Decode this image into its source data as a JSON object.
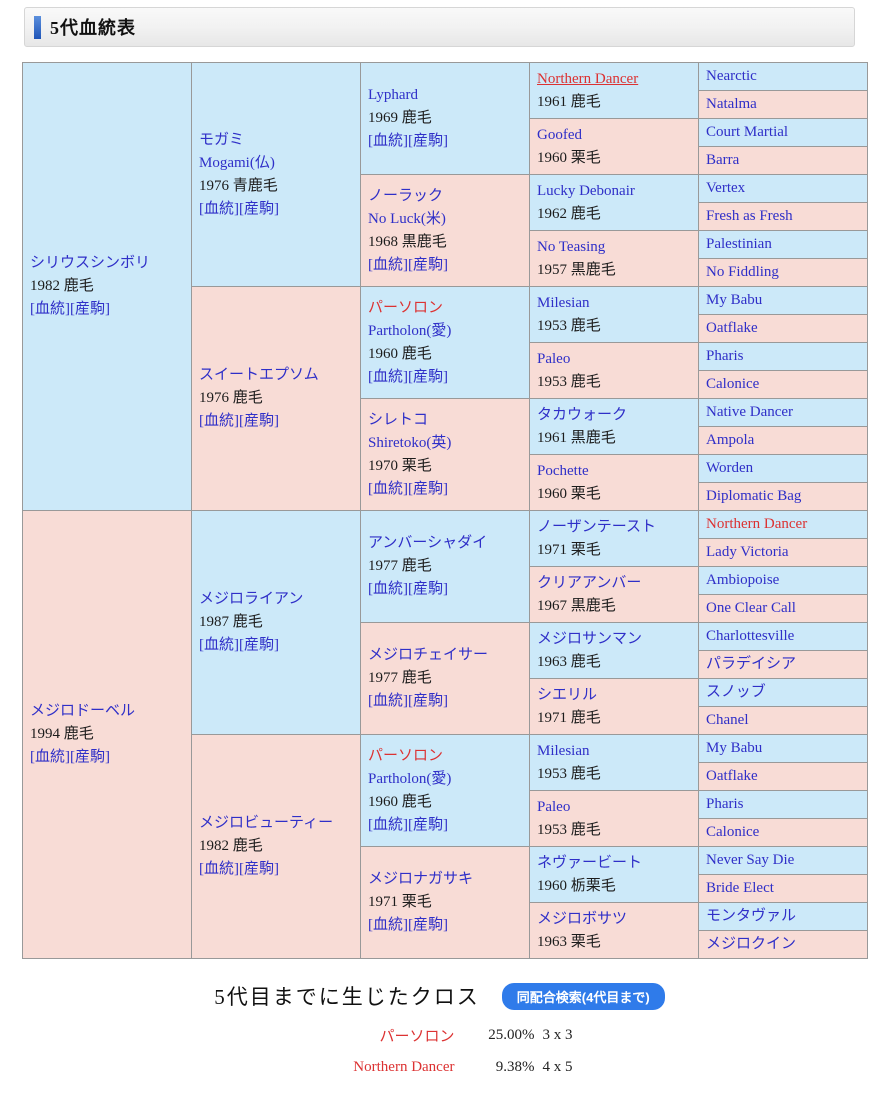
{
  "header": {
    "title": "5代血統表"
  },
  "colors": {
    "male_bg": "#cce9f9",
    "female_bg": "#f8dcd6",
    "link": "#2f2fc8",
    "red": "#dc3232",
    "accent_top": "#5b8fdd",
    "accent_bottom": "#1f55b8",
    "button": "#2f7bea"
  },
  "pedigree": {
    "sublinks": [
      "血統",
      "産駒"
    ],
    "roots": [
      {
        "n": "シリウスシンボリ",
        "info": "1982 鹿毛",
        "links": true,
        "sex": "m",
        "c": [
          {
            "n": "モガミ",
            "n2": "Mogami(仏)",
            "info": "1976 青鹿毛",
            "links": true,
            "sex": "m",
            "c": [
              {
                "n": "Lyphard",
                "info": "1969 鹿毛",
                "links": true,
                "sex": "m",
                "c": [
                  {
                    "n": "Northern Dancer",
                    "info": "1961 鹿毛",
                    "sex": "m",
                    "red": true,
                    "ul": true,
                    "c": [
                      {
                        "n": "Nearctic",
                        "sex": "m"
                      },
                      {
                        "n": "Natalma",
                        "sex": "f"
                      }
                    ]
                  },
                  {
                    "n": "Goofed",
                    "info": "1960 栗毛",
                    "sex": "f",
                    "c": [
                      {
                        "n": "Court Martial",
                        "sex": "m"
                      },
                      {
                        "n": "Barra",
                        "sex": "f"
                      }
                    ]
                  }
                ]
              },
              {
                "n": "ノーラック",
                "n2": "No Luck(米)",
                "info": "1968 黒鹿毛",
                "links": true,
                "sex": "f",
                "c": [
                  {
                    "n": "Lucky Debonair",
                    "info": "1962 鹿毛",
                    "sex": "m",
                    "c": [
                      {
                        "n": "Vertex",
                        "sex": "m"
                      },
                      {
                        "n": "Fresh as Fresh",
                        "sex": "f"
                      }
                    ]
                  },
                  {
                    "n": "No Teasing",
                    "info": "1957 黒鹿毛",
                    "sex": "f",
                    "c": [
                      {
                        "n": "Palestinian",
                        "sex": "m"
                      },
                      {
                        "n": "No Fiddling",
                        "sex": "f"
                      }
                    ]
                  }
                ]
              }
            ]
          },
          {
            "n": "スイートエプソム",
            "info": "1976 鹿毛",
            "links": true,
            "sex": "f",
            "c": [
              {
                "n": "パーソロン",
                "n2": "Partholon(愛)",
                "info": "1960 鹿毛",
                "links": true,
                "sex": "m",
                "red": true,
                "c": [
                  {
                    "n": "Milesian",
                    "info": "1953 鹿毛",
                    "sex": "m",
                    "c": [
                      {
                        "n": "My Babu",
                        "sex": "m"
                      },
                      {
                        "n": "Oatflake",
                        "sex": "f"
                      }
                    ]
                  },
                  {
                    "n": "Paleo",
                    "info": "1953 鹿毛",
                    "sex": "f",
                    "c": [
                      {
                        "n": "Pharis",
                        "sex": "m"
                      },
                      {
                        "n": "Calonice",
                        "sex": "f"
                      }
                    ]
                  }
                ]
              },
              {
                "n": "シレトコ",
                "n2": "Shiretoko(英)",
                "info": "1970 栗毛",
                "links": true,
                "sex": "f",
                "c": [
                  {
                    "n": "タカウォーク",
                    "info": "1961 黒鹿毛",
                    "sex": "m",
                    "c": [
                      {
                        "n": "Native Dancer",
                        "sex": "m"
                      },
                      {
                        "n": "Ampola",
                        "sex": "f"
                      }
                    ]
                  },
                  {
                    "n": "Pochette",
                    "info": "1960 栗毛",
                    "sex": "f",
                    "c": [
                      {
                        "n": "Worden",
                        "sex": "m"
                      },
                      {
                        "n": "Diplomatic Bag",
                        "sex": "f"
                      }
                    ]
                  }
                ]
              }
            ]
          }
        ]
      },
      {
        "n": "メジロドーベル",
        "info": "1994 鹿毛",
        "links": true,
        "sex": "f",
        "c": [
          {
            "n": "メジロライアン",
            "info": "1987 鹿毛",
            "links": true,
            "sex": "m",
            "c": [
              {
                "n": "アンバーシャダイ",
                "info": "1977 鹿毛",
                "links": true,
                "sex": "m",
                "c": [
                  {
                    "n": "ノーザンテースト",
                    "info": "1971 栗毛",
                    "sex": "m",
                    "c": [
                      {
                        "n": "Northern Dancer",
                        "sex": "m",
                        "red": true
                      },
                      {
                        "n": "Lady Victoria",
                        "sex": "f"
                      }
                    ]
                  },
                  {
                    "n": "クリアアンバー",
                    "info": "1967 黒鹿毛",
                    "sex": "f",
                    "c": [
                      {
                        "n": "Ambiopoise",
                        "sex": "m"
                      },
                      {
                        "n": "One Clear Call",
                        "sex": "f"
                      }
                    ]
                  }
                ]
              },
              {
                "n": "メジロチェイサー",
                "info": "1977 鹿毛",
                "links": true,
                "sex": "f",
                "c": [
                  {
                    "n": "メジロサンマン",
                    "info": "1963 鹿毛",
                    "sex": "m",
                    "c": [
                      {
                        "n": "Charlottesville",
                        "sex": "m"
                      },
                      {
                        "n": "パラデイシア",
                        "sex": "f"
                      }
                    ]
                  },
                  {
                    "n": "シエリル",
                    "info": "1971 鹿毛",
                    "sex": "f",
                    "c": [
                      {
                        "n": "スノッブ",
                        "sex": "m"
                      },
                      {
                        "n": "Chanel",
                        "sex": "f"
                      }
                    ]
                  }
                ]
              }
            ]
          },
          {
            "n": "メジロビューティー",
            "info": "1982 鹿毛",
            "links": true,
            "sex": "f",
            "c": [
              {
                "n": "パーソロン",
                "n2": "Partholon(愛)",
                "info": "1960 鹿毛",
                "links": true,
                "sex": "m",
                "red": true,
                "c": [
                  {
                    "n": "Milesian",
                    "info": "1953 鹿毛",
                    "sex": "m",
                    "c": [
                      {
                        "n": "My Babu",
                        "sex": "m"
                      },
                      {
                        "n": "Oatflake",
                        "sex": "f"
                      }
                    ]
                  },
                  {
                    "n": "Paleo",
                    "info": "1953 鹿毛",
                    "sex": "f",
                    "c": [
                      {
                        "n": "Pharis",
                        "sex": "m"
                      },
                      {
                        "n": "Calonice",
                        "sex": "f"
                      }
                    ]
                  }
                ]
              },
              {
                "n": "メジロナガサキ",
                "info": "1971 栗毛",
                "links": true,
                "sex": "f",
                "c": [
                  {
                    "n": "ネヴァービート",
                    "info": "1960 栃栗毛",
                    "sex": "m",
                    "c": [
                      {
                        "n": "Never Say Die",
                        "sex": "m"
                      },
                      {
                        "n": "Bride Elect",
                        "sex": "f"
                      }
                    ]
                  },
                  {
                    "n": "メジロボサツ",
                    "info": "1963 栗毛",
                    "sex": "f",
                    "c": [
                      {
                        "n": "モンタヴァル",
                        "sex": "m"
                      },
                      {
                        "n": "メジロクイン",
                        "sex": "f"
                      }
                    ]
                  }
                ]
              }
            ]
          }
        ]
      }
    ]
  },
  "cross_section": {
    "heading": "5代目までに生じたクロス",
    "button_label": "同配合検索(4代目まで)",
    "rows": [
      {
        "name": "パーソロン",
        "pct": "25.00%",
        "pattern": "3 x 3"
      },
      {
        "name": "Northern Dancer",
        "pct": "9.38%",
        "pattern": "4 x 5"
      }
    ]
  }
}
